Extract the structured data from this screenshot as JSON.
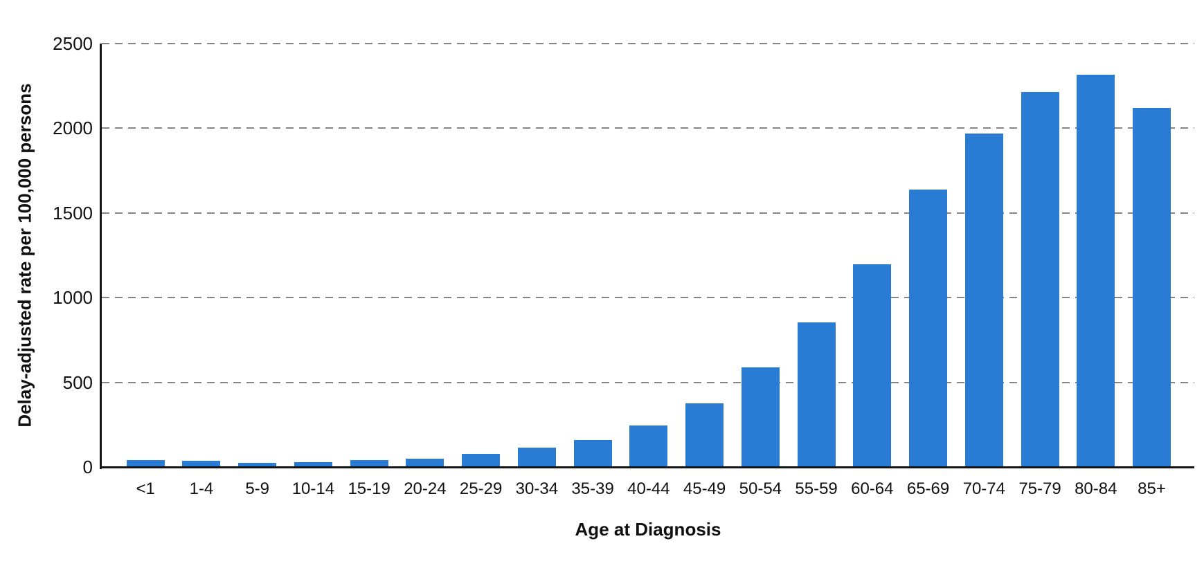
{
  "chart_data": {
    "type": "bar",
    "title": "",
    "xlabel": "Age at Diagnosis",
    "ylabel": "Delay-adjusted rate per 100,000 persons",
    "categories": [
      "<1",
      "1-4",
      "5-9",
      "10-14",
      "15-19",
      "20-24",
      "25-29",
      "30-34",
      "35-39",
      "40-44",
      "45-49",
      "50-54",
      "55-59",
      "60-64",
      "65-69",
      "70-74",
      "75-79",
      "80-84",
      "85+"
    ],
    "values": [
      40,
      38,
      25,
      30,
      40,
      50,
      78,
      113,
      160,
      246,
      374,
      588,
      853,
      1197,
      1640,
      1970,
      2214,
      2316,
      2122
    ],
    "y_ticks": [
      0,
      500,
      1000,
      1500,
      2000,
      2500
    ],
    "ylim": [
      0,
      2500
    ],
    "grid": "horizontal-dashed",
    "legend": "none",
    "colors": {
      "bar": "#2A7BD4",
      "axis": "#141414",
      "gridline": "#858585",
      "background": "#FFFFFF",
      "text": "#111111"
    }
  }
}
